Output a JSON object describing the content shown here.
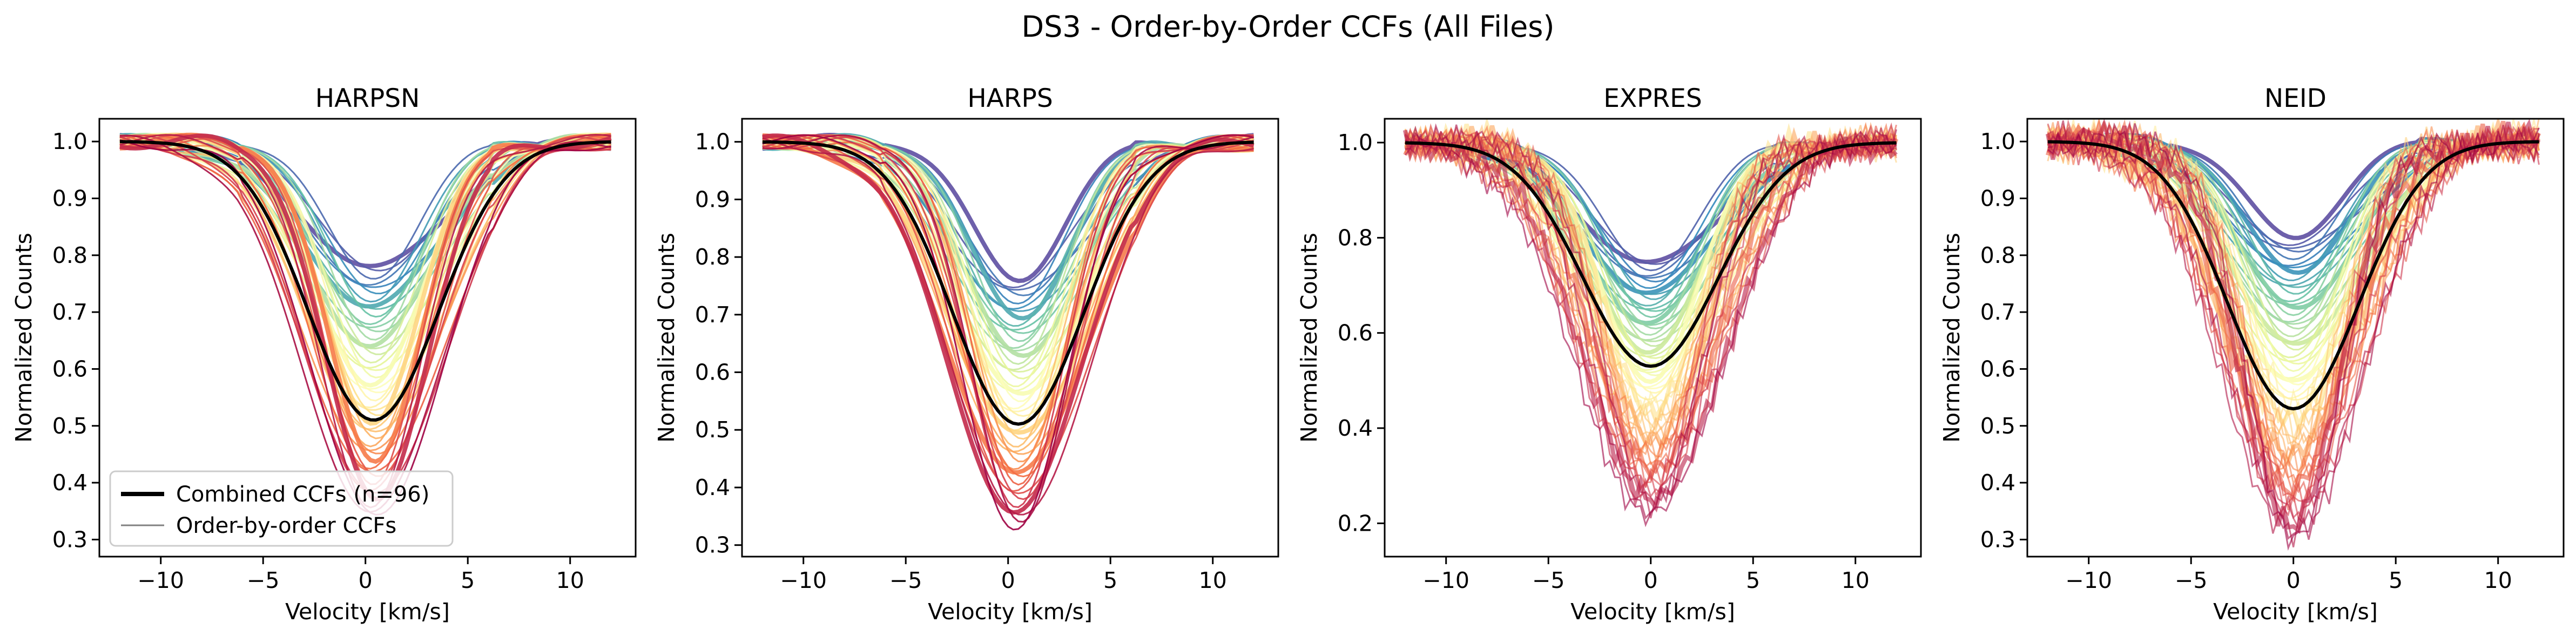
{
  "figure": {
    "title": "DS3 - Order-by-Order CCFs (All Files)"
  },
  "legend": {
    "entries": [
      {
        "label": "Combined CCFs (n=96)",
        "color": "#000000",
        "style": "thick"
      },
      {
        "label": "Order-by-order CCFs",
        "color": "#808080",
        "style": "thin"
      }
    ]
  },
  "chart_data": [
    {
      "type": "line",
      "title": "HARPSN",
      "xlabel": "Velocity [km/s]",
      "ylabel": "Normalized Counts",
      "xlim": [
        -13,
        13.2
      ],
      "ylim": [
        0.27,
        1.04
      ],
      "xticks": [
        -10,
        -5,
        0,
        5,
        10
      ],
      "yticks": [
        0.3,
        0.4,
        0.5,
        0.6,
        0.7,
        0.8,
        0.9,
        1.0
      ],
      "xtick_labels": [
        "−10",
        "−5",
        "0",
        "5",
        "10"
      ],
      "ytick_labels": [
        "0.3",
        "0.4",
        "0.5",
        "0.6",
        "0.7",
        "0.8",
        "0.9",
        "1.0"
      ],
      "x_range": [
        -12,
        12
      ],
      "combined": {
        "depth": 0.49,
        "center": 0.4,
        "width": 3.2
      },
      "orders": {
        "count": 46,
        "min_depth": 0.22,
        "max_depth": 0.66,
        "width": 3.2,
        "colormap": "Spectral"
      }
    },
    {
      "type": "line",
      "title": "HARPS",
      "xlabel": "Velocity [km/s]",
      "ylabel": "Normalized Counts",
      "xlim": [
        -13,
        13.2
      ],
      "ylim": [
        0.28,
        1.04
      ],
      "xticks": [
        -10,
        -5,
        0,
        5,
        10
      ],
      "yticks": [
        0.3,
        0.4,
        0.5,
        0.6,
        0.7,
        0.8,
        0.9,
        1.0
      ],
      "xtick_labels": [
        "−10",
        "−5",
        "0",
        "5",
        "10"
      ],
      "ytick_labels": [
        "0.3",
        "0.4",
        "0.5",
        "0.6",
        "0.7",
        "0.8",
        "0.9",
        "1.0"
      ],
      "x_range": [
        -12,
        12
      ],
      "combined": {
        "depth": 0.49,
        "center": 0.5,
        "width": 3.2
      },
      "orders": {
        "count": 46,
        "min_depth": 0.24,
        "max_depth": 0.67,
        "width": 3.2,
        "colormap": "Spectral"
      }
    },
    {
      "type": "line",
      "title": "EXPRES",
      "xlabel": "Velocity [km/s]",
      "ylabel": "Normalized Counts",
      "xlim": [
        -13,
        13.2
      ],
      "ylim": [
        0.13,
        1.05
      ],
      "xticks": [
        -10,
        -5,
        0,
        5,
        10
      ],
      "yticks": [
        0.2,
        0.4,
        0.6,
        0.8,
        1.0
      ],
      "xtick_labels": [
        "−10",
        "−5",
        "0",
        "5",
        "10"
      ],
      "ytick_labels": [
        "0.2",
        "0.4",
        "0.6",
        "0.8",
        "1.0"
      ],
      "x_range": [
        -12,
        12
      ],
      "combined": {
        "depth": 0.47,
        "center": 0.0,
        "width": 3.3
      },
      "orders": {
        "count": 60,
        "min_depth": 0.25,
        "max_depth": 0.78,
        "width": 3.3,
        "colormap": "Spectral"
      }
    },
    {
      "type": "line",
      "title": "NEID",
      "xlabel": "Velocity [km/s]",
      "ylabel": "Normalized Counts",
      "xlim": [
        -13,
        13.2
      ],
      "ylim": [
        0.27,
        1.04
      ],
      "xticks": [
        -10,
        -5,
        0,
        5,
        10
      ],
      "yticks": [
        0.3,
        0.4,
        0.5,
        0.6,
        0.7,
        0.8,
        0.9,
        1.0
      ],
      "xtick_labels": [
        "−10",
        "−5",
        "0",
        "5",
        "10"
      ],
      "ytick_labels": [
        "0.3",
        "0.4",
        "0.5",
        "0.6",
        "0.7",
        "0.8",
        "0.9",
        "1.0"
      ],
      "x_range": [
        -12,
        12
      ],
      "combined": {
        "depth": 0.47,
        "center": 0.0,
        "width": 3.2
      },
      "orders": {
        "count": 60,
        "min_depth": 0.17,
        "max_depth": 0.7,
        "width": 3.2,
        "colormap": "Spectral"
      }
    }
  ]
}
